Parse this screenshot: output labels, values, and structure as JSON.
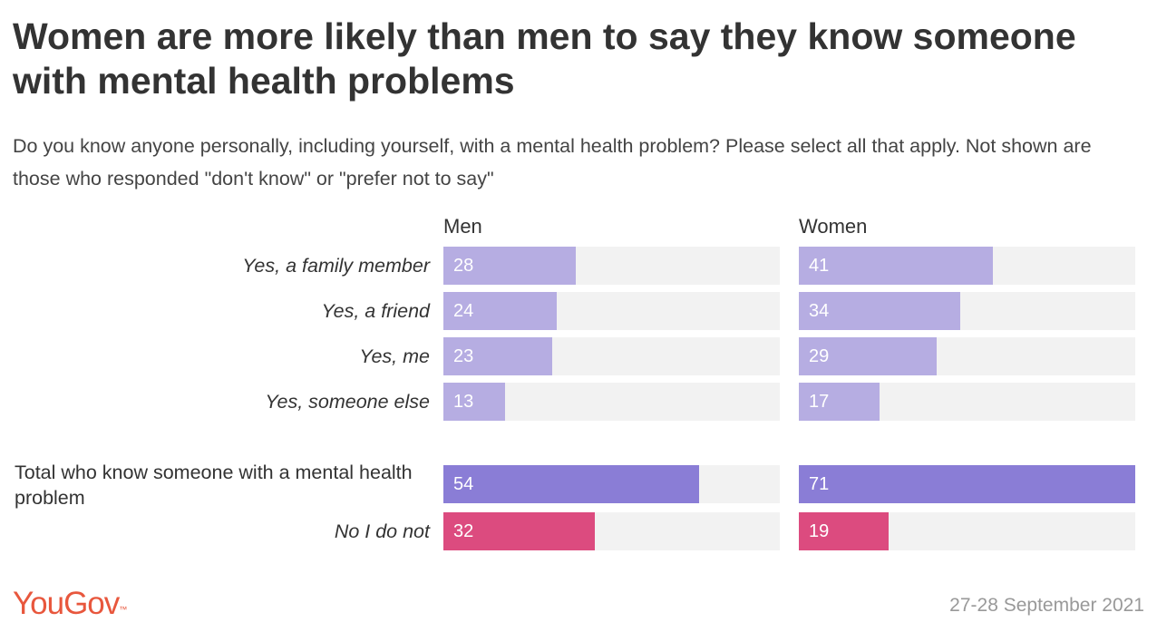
{
  "header": {
    "title": "Women are more likely than men to say they know someone with mental health problems",
    "subtitle": "Do you know anyone personally, including yourself, with a mental health problem? Please select all that apply. Not shown are those who responded \"don't know\" or \"prefer not to say\""
  },
  "footer": {
    "logo": "YouGov",
    "date": "27-28 September 2021"
  },
  "colors": {
    "light_purple": "#b6ade2",
    "dark_purple": "#8a7dd6",
    "pink": "#dc4b7f",
    "track": "#f2f2f2"
  },
  "chart_data": {
    "type": "bar",
    "orientation": "horizontal",
    "xlim": [
      0,
      71
    ],
    "categories": [
      "Yes, a family member",
      "Yes, a friend",
      "Yes, me",
      "Yes, someone else",
      "Total who know someone with a mental health problem",
      "No I do not"
    ],
    "series": [
      {
        "name": "Men",
        "values": [
          28,
          24,
          23,
          13,
          54,
          32
        ]
      },
      {
        "name": "Women",
        "values": [
          41,
          34,
          29,
          17,
          71,
          19
        ]
      }
    ],
    "bar_colors": [
      "light_purple",
      "light_purple",
      "light_purple",
      "light_purple",
      "dark_purple",
      "pink"
    ]
  }
}
